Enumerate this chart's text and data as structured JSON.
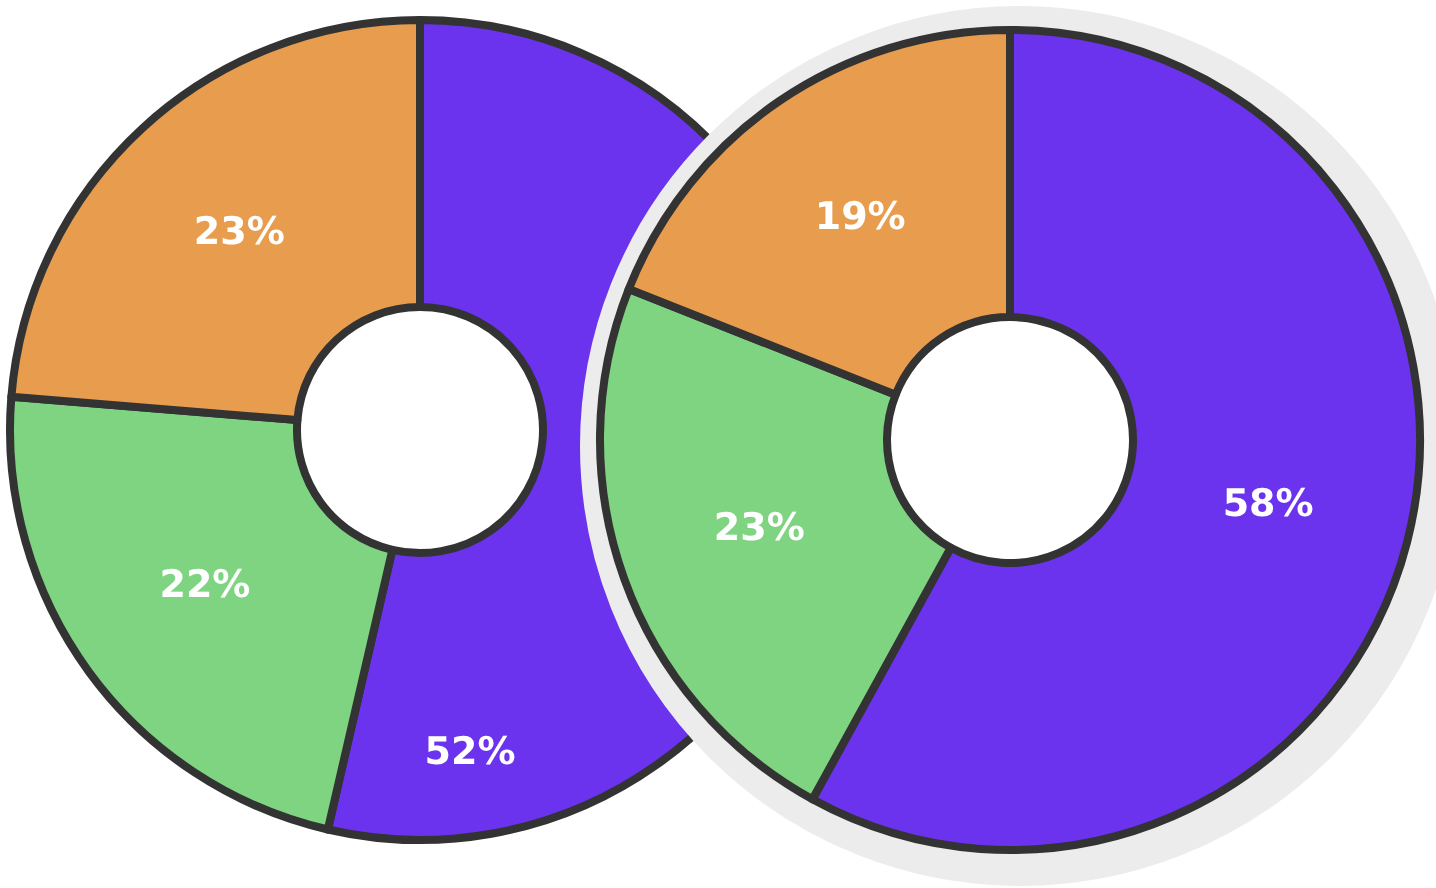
{
  "chart_data": [
    {
      "type": "donut",
      "categories": [
        null,
        null,
        null
      ],
      "values": [
        52,
        22,
        23
      ],
      "value_labels": [
        "52%",
        "22%",
        "23%"
      ],
      "colors": [
        "#6c33ee",
        "#7fd482",
        "#e89d4e"
      ]
    },
    {
      "type": "donut",
      "categories": [
        null,
        null,
        null
      ],
      "values": [
        58,
        23,
        19
      ],
      "value_labels": [
        "58%",
        "23%",
        "19%"
      ],
      "colors": [
        "#6c33ee",
        "#7fd482",
        "#e89d4e"
      ]
    }
  ]
}
